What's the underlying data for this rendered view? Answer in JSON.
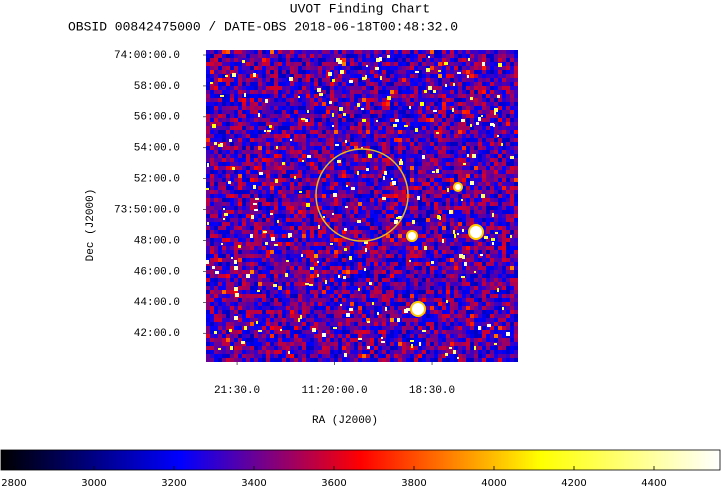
{
  "chart_data": {
    "type": "image",
    "title": "UVOT Finding Chart",
    "subtitle": "OBSID 00842475000 / DATE-OBS 2018-06-18T00:48:32.0",
    "xlabel": "RA (J2000)",
    "ylabel": "Dec (J2000)",
    "xlim": [
      11.3663,
      11.2868
    ],
    "xticks": [
      {
        "value": 11.358333,
        "label": "21:30.0"
      },
      {
        "value": 11.333333,
        "label": "11:20:00.0"
      },
      {
        "value": 11.308333,
        "label": "18:30.0"
      }
    ],
    "ylim": [
      74.0054,
      73.669
    ],
    "yticks": [
      {
        "value": 74.0,
        "label": "74:00:00.0"
      },
      {
        "value": 73.966667,
        "label": "58:00.0"
      },
      {
        "value": 73.933333,
        "label": "56:00.0"
      },
      {
        "value": 73.9,
        "label": "54:00.0"
      },
      {
        "value": 73.866667,
        "label": "52:00.0"
      },
      {
        "value": 73.833333,
        "label": "73:50:00.0"
      },
      {
        "value": 73.8,
        "label": "48:00.0"
      },
      {
        "value": 73.766667,
        "label": "46:00.0"
      },
      {
        "value": 73.733333,
        "label": "44:00.0"
      },
      {
        "value": 73.7,
        "label": "42:00.0"
      }
    ],
    "colormap": [
      "#000000",
      "#0000ff",
      "#ff0000",
      "#ffff00",
      "#ffffff"
    ],
    "clim": [
      2767.5,
      4565
    ],
    "cticks": [
      2800,
      3000,
      3200,
      3400,
      3600,
      3800,
      4000,
      4200,
      4400
    ]
  }
}
